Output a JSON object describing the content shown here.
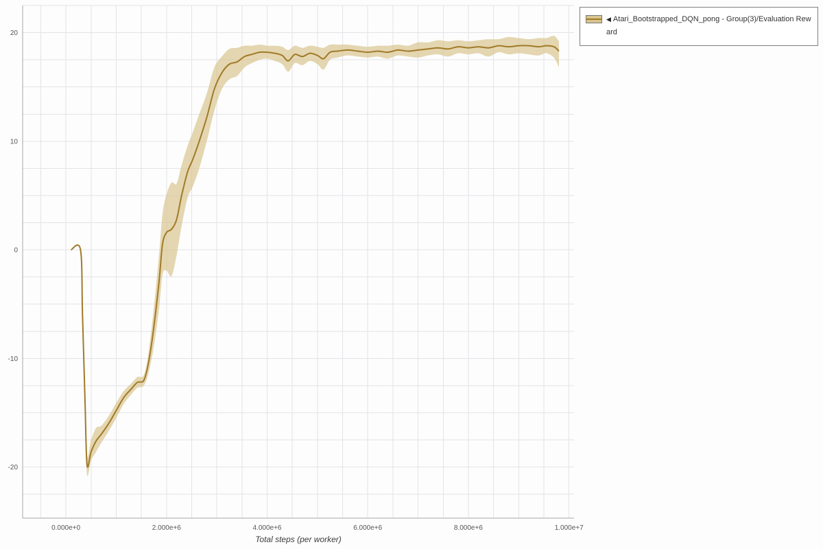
{
  "legend": {
    "icon": "◀",
    "label": "Atari_Bootstrapped_DQN_pong - Group(3)/Evaluation Reward"
  },
  "chart_data": {
    "type": "line",
    "title": "",
    "xlabel": "Total steps (per worker)",
    "ylabel": "",
    "grid": true,
    "legend_position": "top-right",
    "xlim": [
      -860000,
      10100000
    ],
    "ylim": [
      -24.7,
      22.5
    ],
    "x_grid_step": 500000,
    "y_grid_step": 2.5,
    "x_unit": 1000000,
    "x_ticks": [
      {
        "value": 0,
        "label": "0.000e+0"
      },
      {
        "value": 2000000,
        "label": "2.000e+6"
      },
      {
        "value": 4000000,
        "label": "4.000e+6"
      },
      {
        "value": 6000000,
        "label": "6.000e+6"
      },
      {
        "value": 8000000,
        "label": "8.000e+6"
      },
      {
        "value": 10000000,
        "label": "1.000e+7"
      }
    ],
    "y_ticks": [
      {
        "value": -20,
        "label": "-20"
      },
      {
        "value": -10,
        "label": "-10"
      },
      {
        "value": 0,
        "label": "0"
      },
      {
        "value": 10,
        "label": "10"
      },
      {
        "value": 20,
        "label": "20"
      }
    ],
    "colors": {
      "line": "#a07a28",
      "band": "#d8c58f",
      "band_opacity": 0.7,
      "grid": "#e4e4e9",
      "axis": "#a6a6a6",
      "tick_text": "#555555"
    },
    "series": [
      {
        "name": "Atari_Bootstrapped_DQN_pong - Group(3)/Evaluation Reward",
        "x_millions": [
          0.1,
          0.29,
          0.33,
          0.38,
          0.42,
          0.5,
          0.6,
          0.7,
          0.85,
          1.0,
          1.15,
          1.3,
          1.42,
          1.55,
          1.65,
          1.75,
          1.85,
          1.92,
          2.0,
          2.1,
          2.2,
          2.3,
          2.42,
          2.52,
          2.65,
          2.8,
          2.95,
          3.1,
          3.25,
          3.4,
          3.55,
          3.7,
          3.85,
          4.0,
          4.15,
          4.3,
          4.42,
          4.55,
          4.7,
          4.85,
          5.0,
          5.12,
          5.25,
          5.4,
          5.6,
          5.8,
          6.0,
          6.2,
          6.4,
          6.6,
          6.8,
          7.0,
          7.2,
          7.4,
          7.6,
          7.8,
          8.0,
          8.2,
          8.4,
          8.6,
          8.8,
          9.0,
          9.2,
          9.4,
          9.55,
          9.7,
          9.8
        ],
        "mean": [
          0,
          0,
          -6,
          -14,
          -19.8,
          -18.6,
          -17.6,
          -17.0,
          -16.0,
          -14.8,
          -13.6,
          -12.8,
          -12.2,
          -12.0,
          -10.2,
          -7.0,
          -3.0,
          0.5,
          1.6,
          1.9,
          2.8,
          5.0,
          7.2,
          8.3,
          10.0,
          12.2,
          14.8,
          16.3,
          17.1,
          17.3,
          17.8,
          18.0,
          18.2,
          18.2,
          18.1,
          17.9,
          17.4,
          18.0,
          17.8,
          18.1,
          17.9,
          17.6,
          18.2,
          18.3,
          18.4,
          18.3,
          18.2,
          18.3,
          18.2,
          18.4,
          18.3,
          18.4,
          18.5,
          18.6,
          18.5,
          18.7,
          18.6,
          18.7,
          18.6,
          18.8,
          18.7,
          18.8,
          18.8,
          18.7,
          18.8,
          18.7,
          18.3
        ],
        "band_lower": [
          0,
          0,
          -7,
          -15.5,
          -20.7,
          -19.4,
          -18.6,
          -17.8,
          -16.7,
          -15.5,
          -14.2,
          -13.3,
          -12.7,
          -12.5,
          -11.2,
          -8.8,
          -5.5,
          -2.3,
          -1.9,
          -2.4,
          -0.5,
          2.2,
          4.8,
          5.8,
          7.5,
          10.0,
          12.8,
          14.8,
          15.7,
          16.0,
          16.8,
          17.2,
          17.5,
          17.6,
          17.4,
          17.1,
          16.4,
          17.2,
          17.0,
          17.4,
          17.1,
          16.6,
          17.5,
          17.7,
          17.9,
          17.8,
          17.7,
          17.8,
          17.6,
          17.9,
          17.8,
          17.7,
          17.9,
          18.0,
          17.8,
          18.1,
          18.0,
          18.1,
          17.8,
          18.2,
          18.0,
          18.1,
          18.0,
          17.9,
          18.1,
          17.7,
          16.8
        ],
        "band_upper": [
          0,
          0,
          -5,
          -12.5,
          -18.9,
          -17.5,
          -16.4,
          -16.2,
          -15.3,
          -14.1,
          -13.0,
          -12.3,
          -11.7,
          -11.5,
          -9.2,
          -5.2,
          -0.5,
          3.3,
          5.1,
          6.2,
          6.1,
          7.8,
          9.6,
          10.8,
          12.5,
          14.4,
          16.8,
          17.8,
          18.5,
          18.6,
          18.8,
          18.8,
          18.9,
          18.8,
          18.8,
          18.7,
          18.4,
          18.8,
          18.6,
          18.8,
          18.7,
          18.6,
          18.9,
          18.9,
          18.9,
          18.8,
          18.7,
          18.8,
          18.8,
          18.9,
          18.8,
          19.1,
          19.1,
          19.3,
          19.2,
          19.3,
          19.2,
          19.3,
          19.4,
          19.4,
          19.6,
          19.5,
          19.4,
          19.5,
          19.5,
          19.7,
          19.2
        ]
      }
    ]
  }
}
